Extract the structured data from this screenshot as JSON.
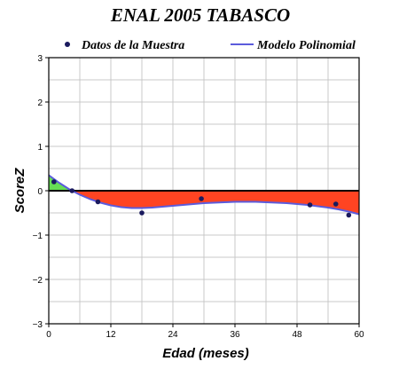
{
  "chart_data": {
    "type": "line",
    "title": "ENAL 2005 TABASCO",
    "xlabel": "Edad (meses)",
    "ylabel": "ScoreZ",
    "xlim": [
      0,
      60
    ],
    "ylim": [
      -3,
      3
    ],
    "x_ticks": [
      0,
      12,
      24,
      36,
      48,
      60
    ],
    "y_ticks": [
      -3,
      -2,
      -1,
      0,
      1,
      2,
      3
    ],
    "x_tick_labels": [
      "0",
      "12",
      "24",
      "36",
      "48",
      "60"
    ],
    "y_tick_labels": [
      "−3",
      "−2",
      "−1",
      "0",
      "1",
      "2",
      "3"
    ],
    "grid": true,
    "legend_position": "top",
    "series": [
      {
        "name": "Datos de la Muestra",
        "kind": "scatter",
        "color": "#1a1a5e",
        "x": [
          1,
          4.5,
          9.5,
          18,
          29.5,
          50.5,
          55.5,
          58
        ],
        "y": [
          0.2,
          0.0,
          -0.25,
          -0.5,
          -0.18,
          -0.32,
          -0.3,
          -0.55
        ]
      },
      {
        "name": "Modelo Polinomial",
        "kind": "line",
        "color": "#5b5bdc",
        "x": [
          0,
          2,
          4,
          6,
          8,
          10,
          12,
          14,
          16,
          18,
          20,
          22,
          24,
          26,
          28,
          30,
          32,
          34,
          36,
          38,
          40,
          42,
          44,
          46,
          48,
          50,
          52,
          54,
          56,
          58,
          60
        ],
        "y": [
          0.35,
          0.18,
          0.03,
          -0.09,
          -0.19,
          -0.27,
          -0.33,
          -0.37,
          -0.39,
          -0.39,
          -0.38,
          -0.36,
          -0.34,
          -0.32,
          -0.3,
          -0.28,
          -0.27,
          -0.26,
          -0.25,
          -0.25,
          -0.25,
          -0.26,
          -0.27,
          -0.28,
          -0.3,
          -0.32,
          -0.35,
          -0.38,
          -0.42,
          -0.47,
          -0.53
        ]
      }
    ],
    "fill_positive_color": "#66dd55",
    "fill_negative_color": "#ff4422"
  }
}
